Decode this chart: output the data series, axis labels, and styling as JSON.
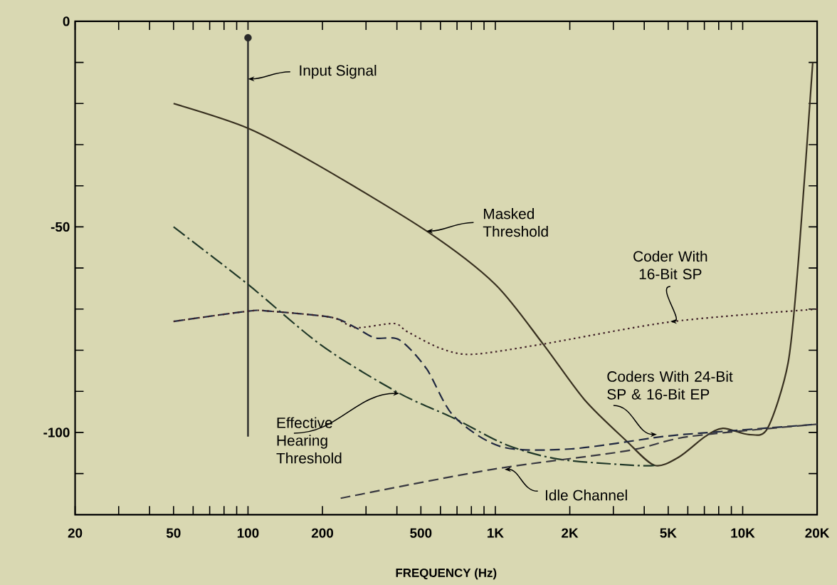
{
  "chart_data": {
    "type": "line",
    "xlabel": "FREQUENCY (Hz)",
    "log": "x",
    "xlim": [
      20,
      20000
    ],
    "ylim": [
      -120,
      0
    ],
    "xticks": [
      20,
      {
        "value": 30,
        "label": null
      },
      {
        "value": 40,
        "label": null
      },
      50,
      {
        "value": 60,
        "label": null
      },
      {
        "value": 70,
        "label": null
      },
      {
        "value": 80,
        "label": null
      },
      {
        "value": 90,
        "label": null
      },
      100,
      200,
      {
        "value": 300,
        "label": null
      },
      {
        "value": 400,
        "label": null
      },
      500,
      {
        "value": 600,
        "label": null
      },
      {
        "value": 700,
        "label": null
      },
      {
        "value": 800,
        "label": null
      },
      {
        "value": 900,
        "label": null
      },
      {
        "value": 1000,
        "label": "1K"
      },
      {
        "value": 2000,
        "label": "2K"
      },
      {
        "value": 3000,
        "label": null
      },
      {
        "value": 4000,
        "label": null
      },
      {
        "value": 5000,
        "label": "5K"
      },
      {
        "value": 6000,
        "label": null
      },
      {
        "value": 7000,
        "label": null
      },
      {
        "value": 8000,
        "label": null
      },
      {
        "value": 9000,
        "label": null
      },
      {
        "value": 10000,
        "label": "10K"
      },
      {
        "value": 20000,
        "label": "20K"
      }
    ],
    "yticks": [
      0,
      {
        "value": -10,
        "label": null
      },
      {
        "value": -20,
        "label": null
      },
      {
        "value": -30,
        "label": null
      },
      {
        "value": -40,
        "label": null
      },
      -50,
      {
        "value": -60,
        "label": null
      },
      {
        "value": -70,
        "label": null
      },
      {
        "value": -80,
        "label": null
      },
      {
        "value": -90,
        "label": null
      },
      -100,
      {
        "value": -110,
        "label": null
      }
    ],
    "grid": false,
    "series": [
      {
        "type": "bar",
        "color": "#2a2a2a",
        "x": [
          100
        ],
        "base": [
          -101
        ],
        "values": [
          97
        ]
      },
      {
        "type": "scatter",
        "marker": "circle",
        "color": "#2a2a2a",
        "x": [
          100
        ],
        "values": [
          -4
        ]
      },
      {
        "line_style": "solid",
        "color": "#383020",
        "x": [
          50,
          100,
          192,
          527,
          1000,
          1560,
          2290,
          3380,
          4400,
          5520,
          7050,
          8320,
          10600,
          12600,
          15270,
          16860,
          19200
        ],
        "values": [
          -20,
          -26,
          -35,
          -51,
          -64,
          -78.5,
          -92,
          -102,
          -108,
          -106,
          -101,
          -99,
          -100.5,
          -99,
          -83,
          -57,
          -10
        ]
      },
      {
        "line_style": "dashdot",
        "color": "#203828",
        "x": [
          50,
          100,
          200,
          410,
          678,
          1107,
          1803,
          3640,
          4400
        ],
        "values": [
          -50,
          -64,
          -79,
          -90.5,
          -96.5,
          -103,
          -106.5,
          -108,
          -108
        ]
      },
      {
        "line_style": "dashed",
        "color": "#202840",
        "x": [
          50,
          100,
          122,
          217,
          272,
          326,
          410,
          527,
          678,
          1060,
          2030,
          4760,
          7380,
          20000
        ],
        "values": [
          -73,
          -70.5,
          -70.5,
          -72,
          -74.5,
          -77,
          -77.5,
          -84.5,
          -96,
          -103.5,
          -104,
          -101,
          -100,
          -98
        ]
      },
      {
        "line_style": "dotted",
        "color": "#402028",
        "x": [
          50,
          100,
          122,
          217,
          272,
          389,
          441,
          598,
          805,
          1560,
          5260,
          20000
        ],
        "values": [
          -73,
          -70.5,
          -70.5,
          -72,
          -74.5,
          -73.5,
          -75.5,
          -79.5,
          -81,
          -78.5,
          -73,
          -70
        ]
      },
      {
        "line_style": "dashed",
        "color": "#383840",
        "x": [
          237,
          968,
          3380,
          6080,
          20000
        ],
        "values": [
          -116,
          -109,
          -104.5,
          -101,
          -98
        ]
      }
    ],
    "annotations": [
      {
        "text": "Input Signal",
        "x": 100,
        "y": -14
      },
      {
        "text": "Masked Threshold",
        "x": 527,
        "y": -51
      },
      {
        "text": "Coder With 16-Bit SP",
        "x": 5100,
        "y": -73
      },
      {
        "text": "Coders With 24-Bit SP & 16-Bit EP",
        "x": 4500,
        "y": -100.5
      },
      {
        "text": "Effective Hearing Threshold",
        "x": 410,
        "y": -90.5
      },
      {
        "text": "Idle Channel",
        "x": 1090,
        "y": -109
      }
    ]
  }
}
